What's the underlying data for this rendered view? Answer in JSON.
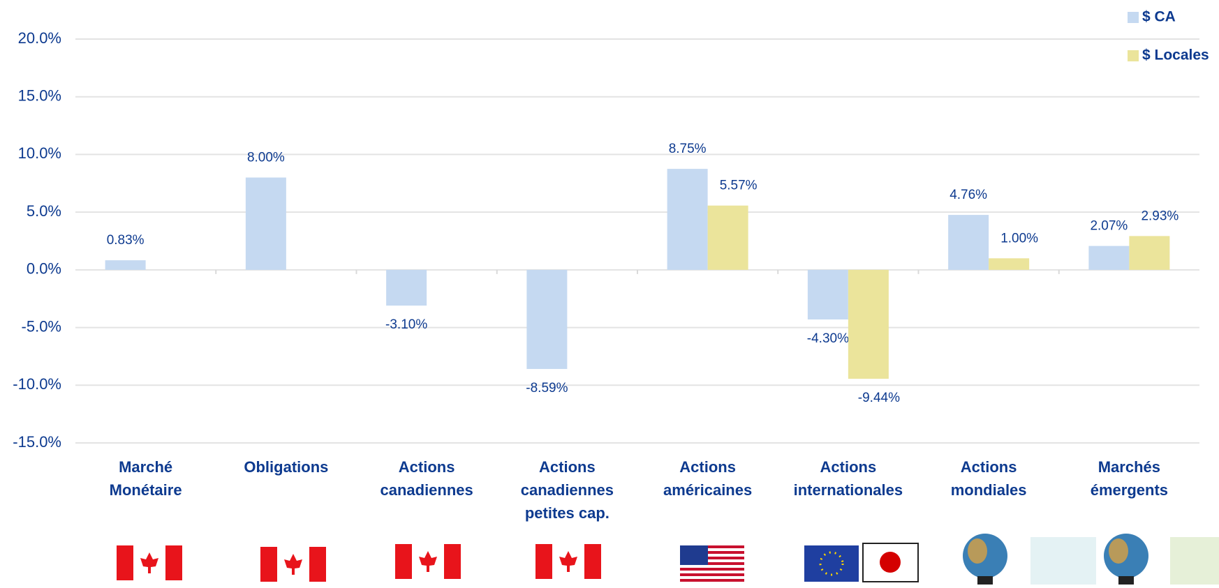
{
  "chart_data": {
    "type": "bar",
    "categories": [
      "Marché\nMonétaire",
      "Obligations",
      "Actions\ncanadiennes",
      "Actions\ncanadiennes\npetites cap.",
      "Actions\naméricaines",
      "Actions\ninternationales",
      "Actions\nmondiales",
      "Marchés\némergents"
    ],
    "series": [
      {
        "name": "$ CA",
        "color": "#c5d9f1",
        "values": [
          0.83,
          8.0,
          -3.1,
          -8.59,
          8.75,
          -4.3,
          4.76,
          2.07
        ],
        "value_labels": [
          "0.83%",
          "8.00%",
          "-3.10%",
          "-8.59%",
          "8.75%",
          "-4.30%",
          "4.76%",
          "2.07%"
        ]
      },
      {
        "name": "$ Locales",
        "color": "#ebe49b",
        "values": [
          null,
          null,
          null,
          null,
          5.57,
          -9.44,
          1.0,
          2.93
        ],
        "value_labels": [
          null,
          null,
          null,
          null,
          "5.57%",
          "-9.44%",
          "1.00%",
          "2.93%"
        ]
      }
    ],
    "ylim": [
      -15,
      20
    ],
    "yticks": [
      {
        "value": -15,
        "label": "-15.0%"
      },
      {
        "value": -10,
        "label": "-10.0%"
      },
      {
        "value": -5,
        "label": "-5.0%"
      },
      {
        "value": 0,
        "label": "0.0%"
      },
      {
        "value": 5,
        "label": "5.0%"
      },
      {
        "value": 10,
        "label": "10.0%"
      },
      {
        "value": 15,
        "label": "15.0%"
      },
      {
        "value": 20,
        "label": "20.0%"
      }
    ],
    "grid": true,
    "legend": "top-right"
  }
}
